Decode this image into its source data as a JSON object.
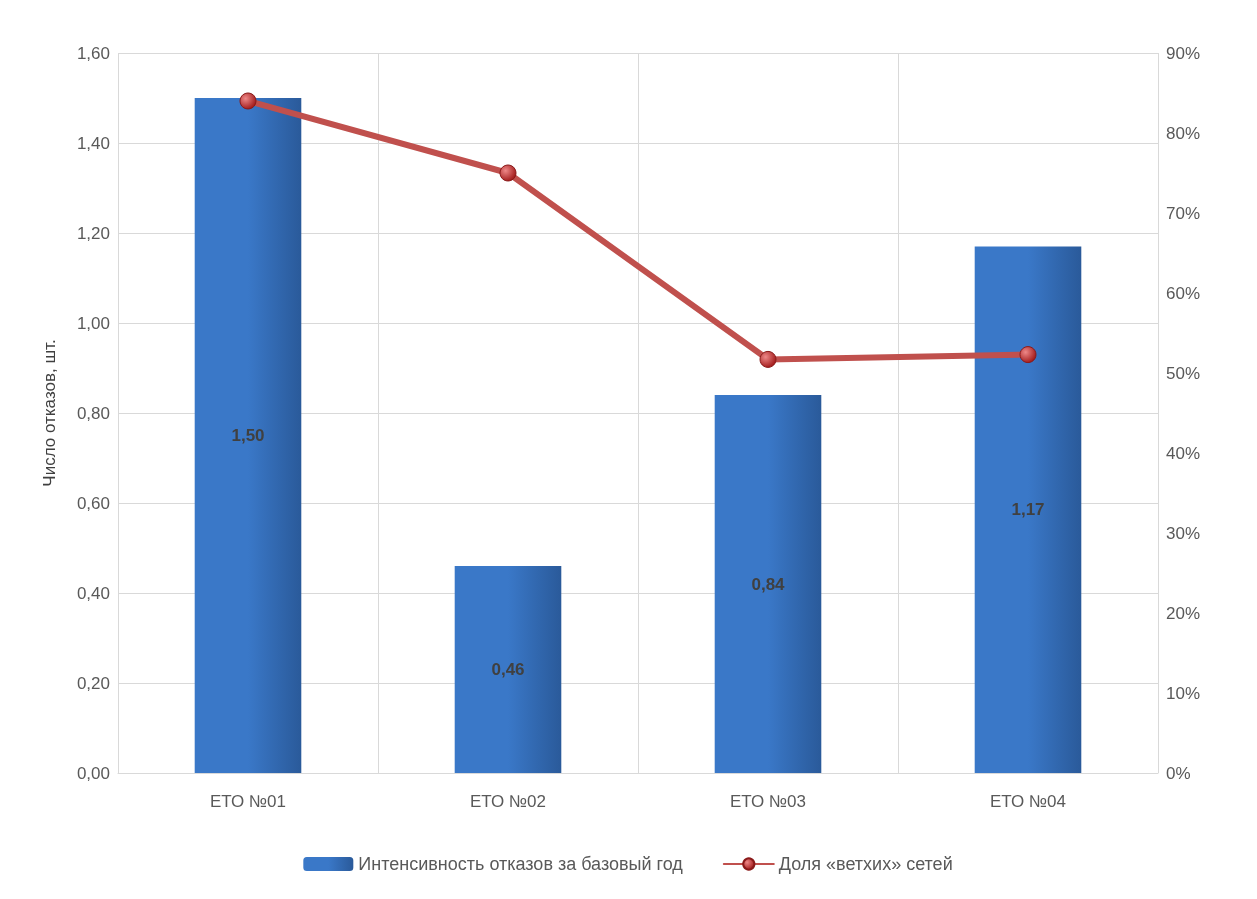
{
  "chart_data": {
    "type": "bar",
    "ylabel": "Число отказов, шт.",
    "categories": [
      "ЕТО №01",
      "ЕТО №02",
      "ЕТО №03",
      "ЕТО №04"
    ],
    "series": [
      {
        "name": "Интенсивность отказов за базовый год",
        "color": "#3a78c8",
        "values": [
          1.5,
          0.46,
          0.84,
          1.17
        ],
        "value_labels": [
          "1,50",
          "0,46",
          "0,84",
          "1,17"
        ]
      },
      {
        "name": "Доля «ветхих» сетей",
        "type": "line",
        "axis": "y2",
        "color": "#c0504d",
        "values": [
          84,
          75,
          51.7,
          52.3
        ]
      }
    ],
    "ylim": [
      0,
      1.6
    ],
    "yticks": [
      {
        "value": 0,
        "label": "0,00"
      },
      {
        "value": 0.2,
        "label": "0,20"
      },
      {
        "value": 0.4,
        "label": "0,40"
      },
      {
        "value": 0.6,
        "label": "0,60"
      },
      {
        "value": 0.8,
        "label": "0,80"
      },
      {
        "value": 1,
        "label": "1,00"
      },
      {
        "value": 1.2,
        "label": "1,20"
      },
      {
        "value": 1.4,
        "label": "1,40"
      },
      {
        "value": 1.6,
        "label": "1,60"
      }
    ],
    "y2lim": [
      0,
      90
    ],
    "y2ticks": [
      {
        "value": 0,
        "label": "0%"
      },
      {
        "value": 10,
        "label": "10%"
      },
      {
        "value": 20,
        "label": "20%"
      },
      {
        "value": 30,
        "label": "30%"
      },
      {
        "value": 40,
        "label": "40%"
      },
      {
        "value": 50,
        "label": "50%"
      },
      {
        "value": 60,
        "label": "60%"
      },
      {
        "value": 70,
        "label": "70%"
      },
      {
        "value": 80,
        "label": "80%"
      },
      {
        "value": 90,
        "label": "90%"
      }
    ],
    "grid": true,
    "legend": "bottom",
    "marker": "circle",
    "line_style": "solid"
  }
}
